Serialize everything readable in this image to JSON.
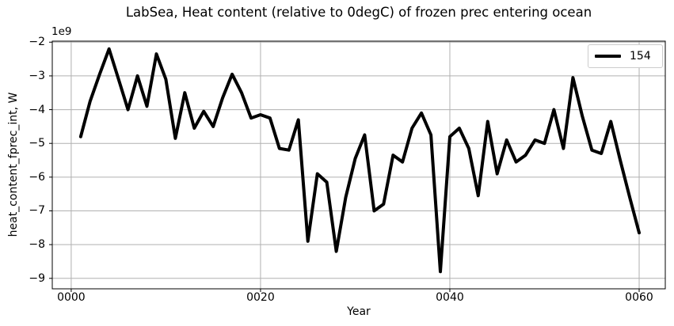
{
  "chart_data": {
    "type": "line",
    "title": "LabSea, Heat content (relative to 0degC) of frozen prec entering ocean",
    "xlabel": "Year",
    "ylabel": "heat_content_fprec_int, W",
    "y_offset_text": "1e9",
    "values_unit": "1e9 W",
    "grid": true,
    "legend_position": "upper right",
    "line_color": "#000000",
    "grid_color": "#b0b0b0",
    "spine_color": "#000000",
    "xlim": [
      -2.0,
      62.76
    ],
    "ylim": [
      -9.31,
      -1.97
    ],
    "xticks": {
      "values": [
        0,
        20,
        40,
        60
      ],
      "labels": [
        "0000",
        "0020",
        "0040",
        "0060"
      ]
    },
    "yticks": {
      "values": [
        -2,
        -3,
        -4,
        -5,
        -6,
        -7,
        -8,
        -9
      ],
      "labels": [
        "−2",
        "−3",
        "−4",
        "−5",
        "−6",
        "−7",
        "−8",
        "−9"
      ]
    },
    "series": [
      {
        "name": "154",
        "x": [
          1,
          2,
          3,
          4,
          5,
          6,
          7,
          8,
          9,
          10,
          11,
          12,
          13,
          14,
          15,
          16,
          17,
          18,
          19,
          20,
          21,
          22,
          23,
          24,
          25,
          26,
          27,
          28,
          29,
          30,
          31,
          32,
          33,
          34,
          35,
          36,
          37,
          38,
          39,
          40,
          41,
          42,
          43,
          44,
          45,
          46,
          47,
          48,
          49,
          50,
          51,
          52,
          53,
          54,
          55,
          56,
          57,
          58,
          59,
          60
        ],
        "values": [
          -4.8,
          -3.75,
          -2.95,
          -2.2,
          -3.1,
          -4.0,
          -3.0,
          -3.9,
          -2.35,
          -3.1,
          -4.85,
          -3.5,
          -4.55,
          -4.05,
          -4.5,
          -3.65,
          -2.95,
          -3.5,
          -4.25,
          -4.15,
          -4.25,
          -5.15,
          -5.2,
          -4.3,
          -7.9,
          -5.9,
          -6.15,
          -8.2,
          -6.6,
          -5.45,
          -4.75,
          -7.0,
          -6.8,
          -5.35,
          -5.55,
          -4.55,
          -4.1,
          -4.75,
          -8.8,
          -4.8,
          -4.55,
          -5.15,
          -6.55,
          -4.35,
          -5.9,
          -4.9,
          -5.55,
          -5.35,
          -4.9,
          -5.0,
          -4.0,
          -5.15,
          -3.05,
          -4.2,
          -5.2,
          -5.3,
          -4.35,
          -5.5,
          -6.6,
          -7.65
        ]
      }
    ]
  }
}
